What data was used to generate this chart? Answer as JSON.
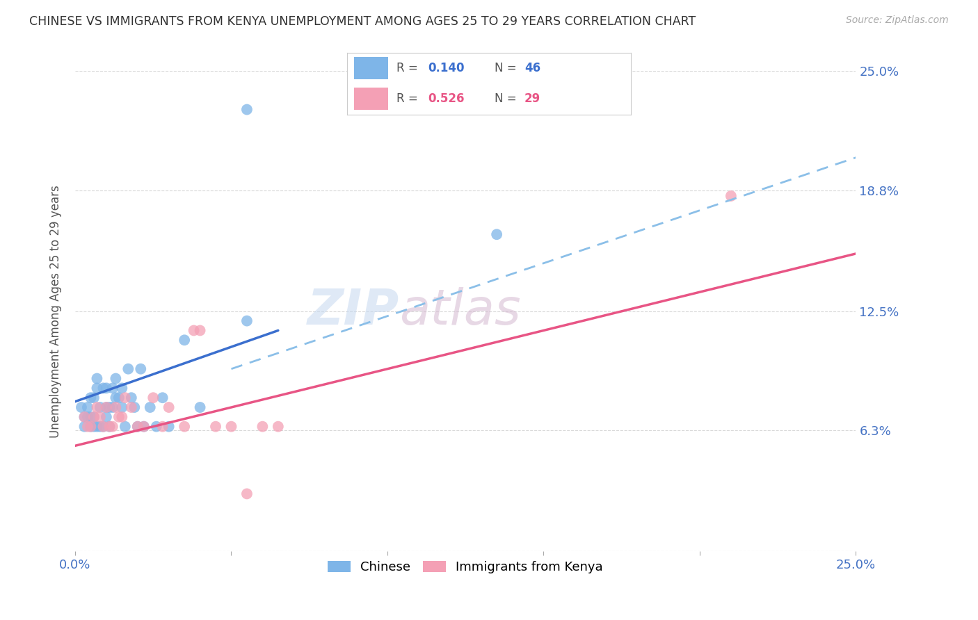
{
  "title": "CHINESE VS IMMIGRANTS FROM KENYA UNEMPLOYMENT AMONG AGES 25 TO 29 YEARS CORRELATION CHART",
  "source": "Source: ZipAtlas.com",
  "ylabel": "Unemployment Among Ages 25 to 29 years",
  "xlim": [
    0,
    0.25
  ],
  "ylim": [
    0,
    0.25
  ],
  "legend_r1": "R = 0.140",
  "legend_n1": "N = 46",
  "legend_r2": "R = 0.526",
  "legend_n2": "N = 29",
  "watermark_zip": "ZIP",
  "watermark_atlas": "atlas",
  "chinese_color": "#7eb5e8",
  "kenya_color": "#f4a0b5",
  "blue_line_color": "#3b6fce",
  "pink_line_color": "#e85585",
  "dashed_line_color": "#8bbfe8",
  "background_color": "#ffffff",
  "grid_color": "#d0d0d0",
  "axis_label_color": "#4472c4",
  "blue_line_x": [
    0.0,
    0.065
  ],
  "blue_line_y": [
    0.078,
    0.115
  ],
  "pink_line_x": [
    0.0,
    0.25
  ],
  "pink_line_y": [
    0.055,
    0.155
  ],
  "dashed_line_x": [
    0.05,
    0.25
  ],
  "dashed_line_y": [
    0.095,
    0.205
  ],
  "chinese_x": [
    0.002,
    0.003,
    0.003,
    0.004,
    0.004,
    0.005,
    0.005,
    0.005,
    0.006,
    0.006,
    0.006,
    0.007,
    0.007,
    0.007,
    0.008,
    0.008,
    0.009,
    0.009,
    0.01,
    0.01,
    0.01,
    0.011,
    0.011,
    0.012,
    0.012,
    0.013,
    0.013,
    0.014,
    0.015,
    0.015,
    0.016,
    0.017,
    0.018,
    0.019,
    0.02,
    0.021,
    0.022,
    0.024,
    0.026,
    0.028,
    0.03,
    0.035,
    0.04,
    0.055,
    0.135,
    0.055
  ],
  "chinese_y": [
    0.075,
    0.07,
    0.065,
    0.07,
    0.075,
    0.065,
    0.07,
    0.08,
    0.065,
    0.07,
    0.08,
    0.085,
    0.065,
    0.09,
    0.065,
    0.075,
    0.065,
    0.085,
    0.07,
    0.075,
    0.085,
    0.075,
    0.065,
    0.085,
    0.075,
    0.09,
    0.08,
    0.08,
    0.075,
    0.085,
    0.065,
    0.095,
    0.08,
    0.075,
    0.065,
    0.095,
    0.065,
    0.075,
    0.065,
    0.08,
    0.065,
    0.11,
    0.075,
    0.23,
    0.165,
    0.12
  ],
  "kenya_x": [
    0.003,
    0.004,
    0.005,
    0.006,
    0.007,
    0.008,
    0.009,
    0.01,
    0.011,
    0.012,
    0.013,
    0.014,
    0.015,
    0.016,
    0.018,
    0.02,
    0.022,
    0.025,
    0.028,
    0.03,
    0.035,
    0.038,
    0.04,
    0.045,
    0.05,
    0.055,
    0.06,
    0.065,
    0.21
  ],
  "kenya_y": [
    0.07,
    0.065,
    0.065,
    0.07,
    0.075,
    0.07,
    0.065,
    0.075,
    0.065,
    0.065,
    0.075,
    0.07,
    0.07,
    0.08,
    0.075,
    0.065,
    0.065,
    0.08,
    0.065,
    0.075,
    0.065,
    0.115,
    0.115,
    0.065,
    0.065,
    0.03,
    0.065,
    0.065,
    0.185
  ]
}
